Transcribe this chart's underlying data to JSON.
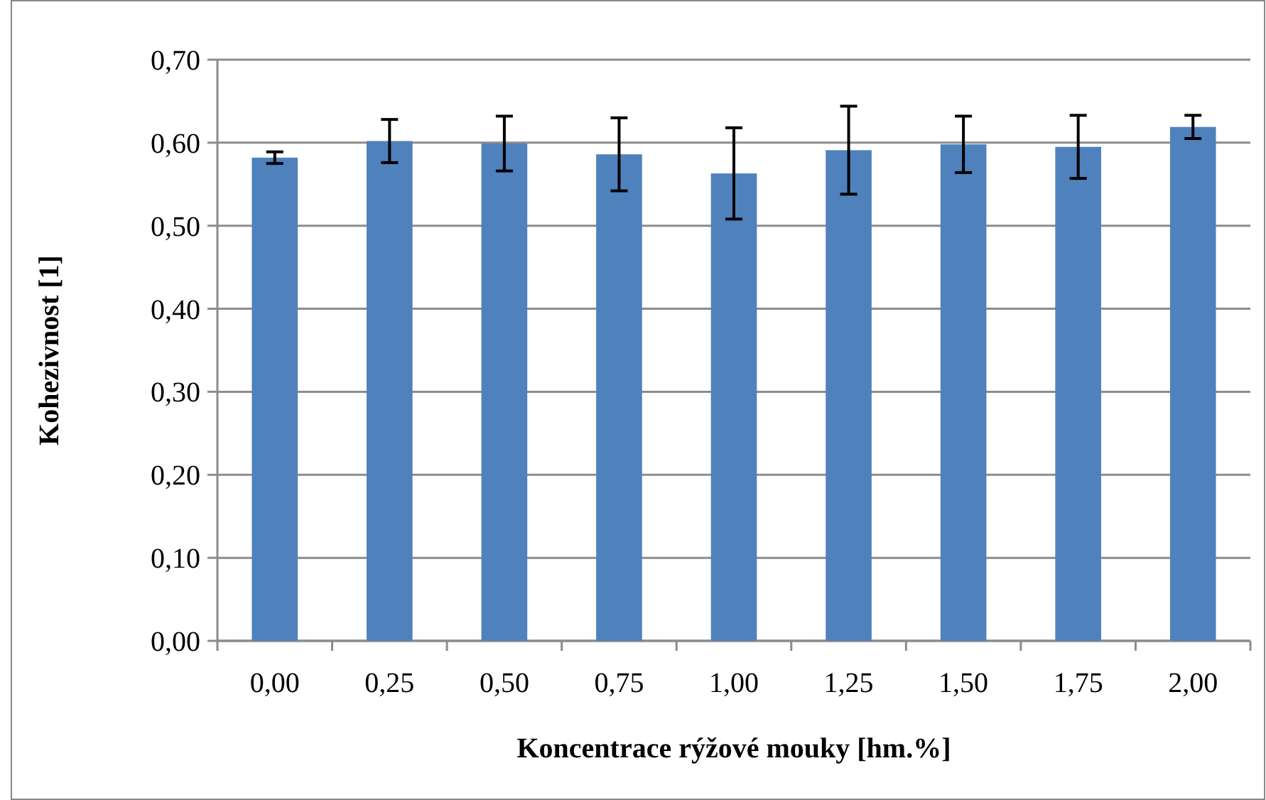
{
  "chart_data": {
    "type": "bar",
    "xlabel": "Koncentrace rýžové mouky [hm.%]",
    "ylabel": "Kohezivnost [1]",
    "categories": [
      "0,00",
      "0,25",
      "0,50",
      "0,75",
      "1,00",
      "1,25",
      "1,50",
      "1,75",
      "2,00"
    ],
    "values": [
      0.582,
      0.602,
      0.599,
      0.586,
      0.563,
      0.591,
      0.598,
      0.595,
      0.619
    ],
    "errors": [
      0.007,
      0.026,
      0.033,
      0.044,
      0.055,
      0.053,
      0.034,
      0.038,
      0.014
    ],
    "color": "#4f81bd",
    "ylim": [
      0,
      0.7
    ],
    "yticks": [
      {
        "value": 0,
        "label": "0,00"
      },
      {
        "value": 0.1,
        "label": "0,10"
      },
      {
        "value": 0.2,
        "label": "0,20"
      },
      {
        "value": 0.3,
        "label": "0,30"
      },
      {
        "value": 0.4,
        "label": "0,40"
      },
      {
        "value": 0.5,
        "label": "0,50"
      },
      {
        "value": 0.6,
        "label": "0,60"
      },
      {
        "value": 0.7,
        "label": "0,70"
      }
    ],
    "grid": "y"
  }
}
